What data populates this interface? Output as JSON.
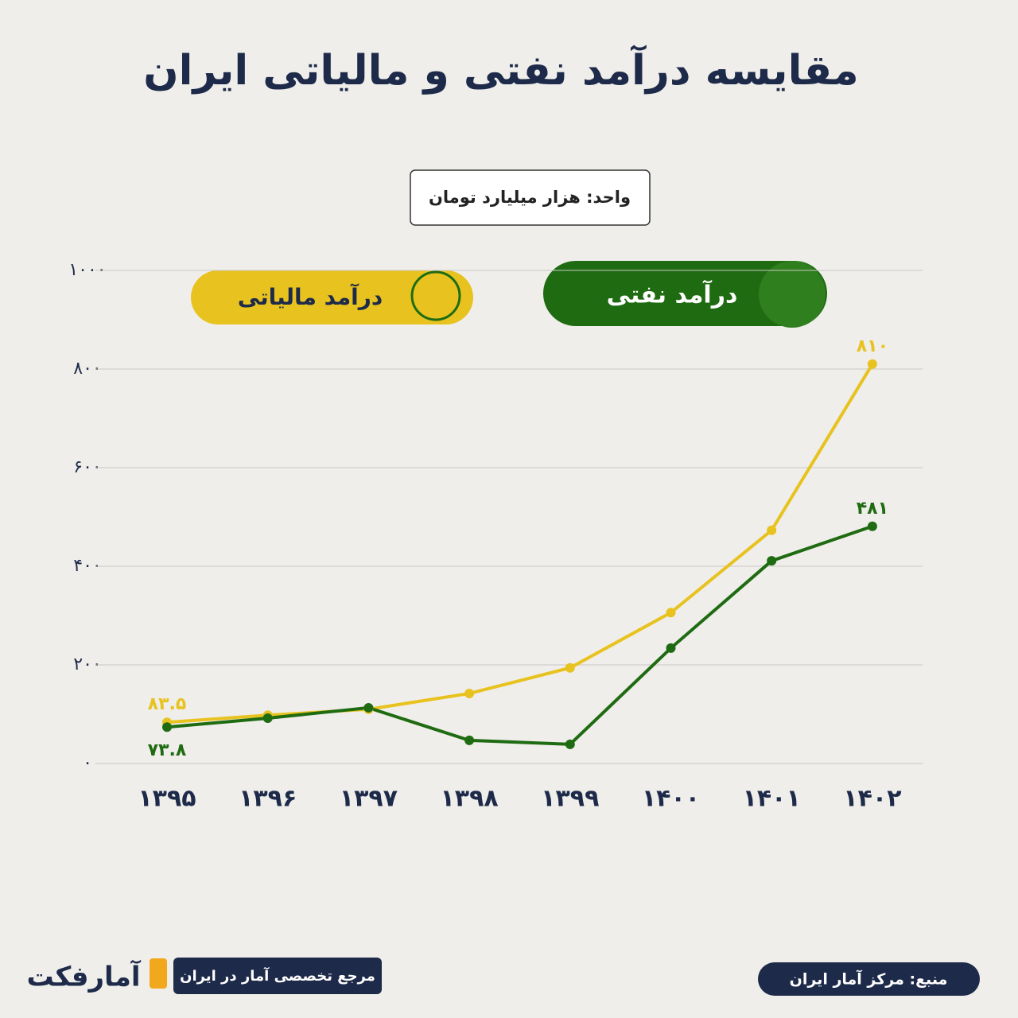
{
  "chart_data": {
    "type": "line",
    "title": "مقایسه درآمد نفتی و مالیاتی ایران",
    "subtitle": "واحد: هزار میلیارد تومان",
    "categories": [
      "۱۳۹۵",
      "۱۳۹۶",
      "۱۳۹۷",
      "۱۳۹۸",
      "۱۳۹۹",
      "۱۴۰۰",
      "۱۴۰۱",
      "۱۴۰۲"
    ],
    "series": [
      {
        "name": "درآمد مالیاتی",
        "color": "#e8c21e",
        "values": [
          83.5,
          98,
          110,
          142,
          194,
          306,
          473,
          810
        ],
        "value_labels": [
          "۸۳.۵",
          null,
          null,
          null,
          null,
          null,
          null,
          "۸۱۰"
        ]
      },
      {
        "name": "درآمد نفتی",
        "color": "#1f6b12",
        "values": [
          73.8,
          92,
          113,
          47,
          39,
          234,
          411,
          481
        ],
        "value_labels": [
          "۷۳.۸",
          null,
          null,
          null,
          null,
          null,
          null,
          "۴۸۱"
        ]
      }
    ],
    "ylim": [
      0,
      1000
    ],
    "yticks": [
      {
        "value": 0,
        "label": "۰"
      },
      {
        "value": 200,
        "label": "۲۰۰"
      },
      {
        "value": 400,
        "label": "۴۰۰"
      },
      {
        "value": 600,
        "label": "۶۰۰"
      },
      {
        "value": 800,
        "label": "۸۰۰"
      },
      {
        "value": 1000,
        "label": "۱۰۰۰"
      }
    ],
    "grid": true,
    "footer": {
      "brand": "آمارفکت",
      "tagline": "مرجع تخصصی آمار در ایران",
      "source": "منبع: مرکز آمار ایران"
    }
  }
}
